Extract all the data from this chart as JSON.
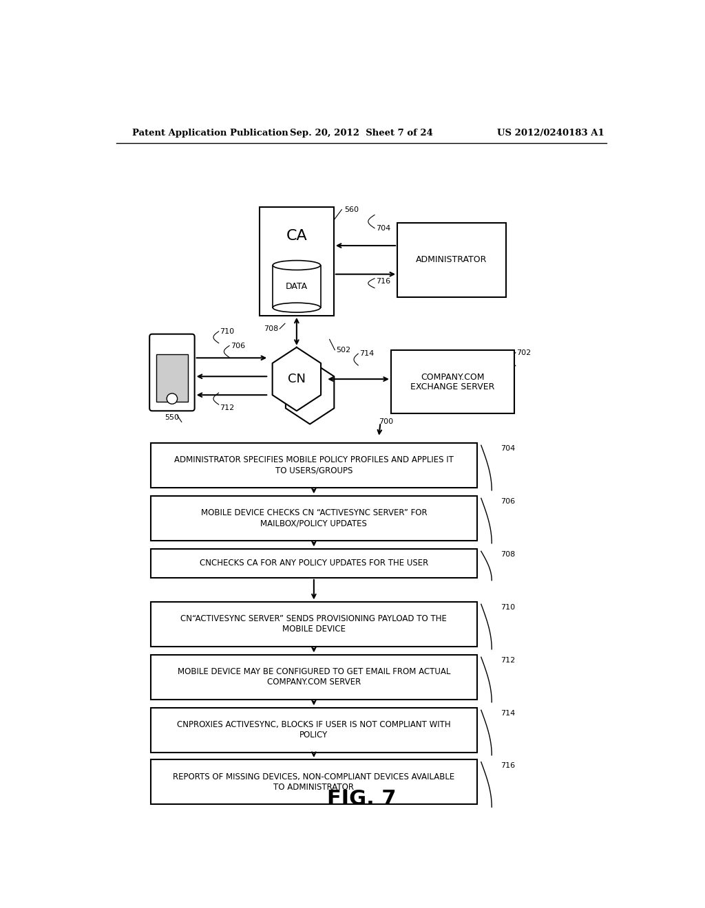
{
  "header_left": "Patent Application Publication",
  "header_mid": "Sep. 20, 2012  Sheet 7 of 24",
  "header_right": "US 2012/0240183 A1",
  "fig_label": "FIG. 7",
  "flow_boxes": [
    {
      "text": "ADMINISTRATOR SPECIFIES MOBILE POLICY PROFILES AND APPLIES IT\nTO USERS/GROUPS",
      "label": "704"
    },
    {
      "text": "MOBILE DEVICE CHECKS CN “ACTIVESYNC SERVER” FOR\nMAILBOX/POLICY UPDATES",
      "label": "706"
    },
    {
      "text": "CNCHECKS CA FOR ANY POLICY UPDATES FOR THE USER",
      "label": "708"
    },
    {
      "text": "CN“ACTIVESYNC SERVER” SENDS PROVISIONING PAYLOAD TO THE\nMOBILE DEVICE",
      "label": "710"
    },
    {
      "text": "MOBILE DEVICE MAY BE CONFIGURED TO GET EMAIL FROM ACTUAL\nCOMPANY.COM SERVER",
      "label": "712"
    },
    {
      "text": "CNPROXIES ACTIVESYNC, BLOCKS IF USER IS NOT COMPLIANT WITH\nPOLICY",
      "label": "714"
    },
    {
      "text": "REPORTS OF MISSING DEVICES, NON-COMPLIANT DEVICES AVAILABLE\nTO ADMINISTRATOR",
      "label": "716"
    }
  ],
  "background_color": "#ffffff"
}
